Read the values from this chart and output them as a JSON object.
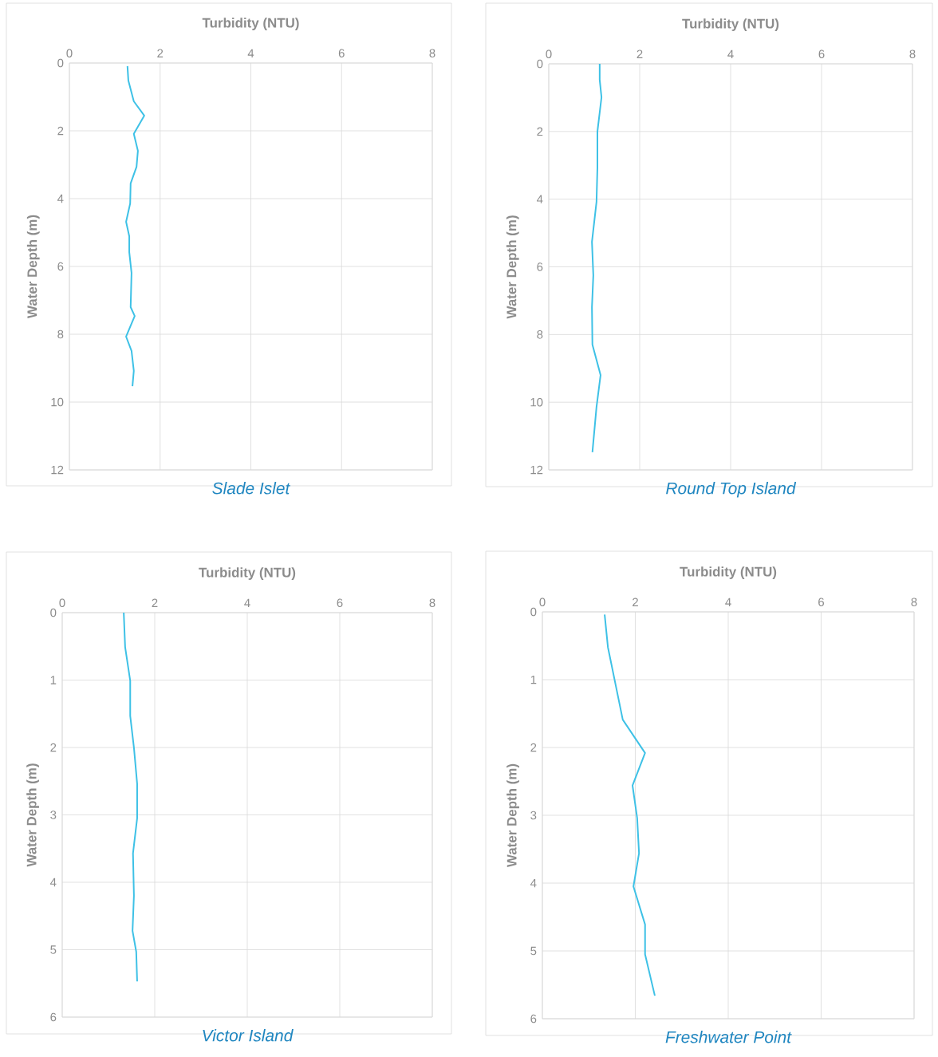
{
  "chart_data": [
    {
      "type": "line",
      "title": "Slade Islet",
      "xlabel": "Turbidity (NTU)",
      "ylabel": "Water Depth (m)",
      "xlim": [
        0,
        8
      ],
      "xticks": [
        0,
        2,
        4,
        6,
        8
      ],
      "ylim": [
        12,
        0
      ],
      "yticks": [
        0,
        2,
        4,
        6,
        8,
        10,
        12
      ],
      "grid": true,
      "series": [
        {
          "color": "#3ec1e6",
          "x": [
            1.28,
            1.3,
            1.42,
            1.65,
            1.42,
            1.51,
            1.48,
            1.35,
            1.34,
            1.25,
            1.32,
            1.32,
            1.37,
            1.35,
            1.44,
            1.25,
            1.37,
            1.42,
            1.39
          ],
          "values": [
            0.09,
            0.52,
            1.13,
            1.55,
            2.09,
            2.59,
            3.06,
            3.55,
            4.14,
            4.68,
            5.11,
            5.58,
            6.19,
            7.2,
            7.46,
            8.07,
            8.49,
            9.08,
            9.53
          ]
        }
      ]
    },
    {
      "type": "line",
      "title": "Round Top Island",
      "xlabel": "Turbidity (NTU)",
      "ylabel": "Water Depth (m)",
      "xlim": [
        0,
        8
      ],
      "xticks": [
        0,
        2,
        4,
        6,
        8
      ],
      "ylim": [
        12,
        0
      ],
      "yticks": [
        0,
        2,
        4,
        6,
        8,
        10,
        12
      ],
      "grid": true,
      "series": [
        {
          "color": "#3ec1e6",
          "x": [
            1.12,
            1.12,
            1.16,
            1.07,
            1.07,
            1.05,
            0.95,
            0.98,
            0.95,
            0.96,
            1.14,
            1.05,
            0.96
          ],
          "values": [
            0,
            0.47,
            0.99,
            2.0,
            3.07,
            4.08,
            5.26,
            6.25,
            7.19,
            8.3,
            9.2,
            10.14,
            11.48
          ]
        }
      ]
    },
    {
      "type": "line",
      "title": "Victor Island",
      "xlabel": "Turbidity (NTU)",
      "ylabel": "Water Depth (m)",
      "xlim": [
        0,
        8
      ],
      "xticks": [
        0,
        2,
        4,
        6,
        8
      ],
      "ylim": [
        6,
        0
      ],
      "yticks": [
        0,
        1,
        2,
        3,
        4,
        5,
        6
      ],
      "grid": true,
      "series": [
        {
          "color": "#3ec1e6",
          "x": [
            1.33,
            1.36,
            1.47,
            1.47,
            1.55,
            1.62,
            1.62,
            1.53,
            1.55,
            1.52,
            1.6,
            1.62
          ],
          "values": [
            0,
            0.51,
            1.01,
            1.53,
            2.0,
            2.54,
            3.05,
            3.57,
            4.2,
            4.72,
            5.03,
            5.47
          ]
        }
      ]
    },
    {
      "type": "line",
      "title": "Freshwater Point",
      "xlabel": "Turbidity (NTU)",
      "ylabel": "Water Depth (m)",
      "xlim": [
        0,
        8
      ],
      "xticks": [
        0,
        2,
        4,
        6,
        8
      ],
      "ylim": [
        6,
        0
      ],
      "yticks": [
        0,
        1,
        2,
        3,
        4,
        5,
        6
      ],
      "grid": true,
      "series": [
        {
          "color": "#3ec1e6",
          "x": [
            1.34,
            1.41,
            1.73,
            2.21,
            1.94,
            2.04,
            2.08,
            1.96,
            2.21,
            2.21,
            2.42
          ],
          "values": [
            0.04,
            0.52,
            1.59,
            2.08,
            2.56,
            3.04,
            3.56,
            4.05,
            4.61,
            5.05,
            5.66
          ]
        }
      ]
    }
  ]
}
